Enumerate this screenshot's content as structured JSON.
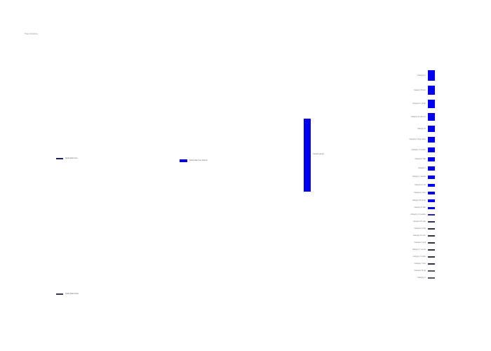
{
  "page": {
    "title": "Tree structure"
  },
  "left_nodes": [
    {
      "label": "Node label one",
      "color": "#1a1a66"
    },
    {
      "label": "Node label two branch",
      "color": "#0000ee"
    },
    {
      "label": "Node label three",
      "color": "#333355"
    }
  ],
  "center_node": {
    "label": "Central group",
    "color": "#0000ee"
  },
  "right_column": {
    "items": [
      {
        "label": "Category A",
        "weight": 15,
        "color": "#0000ee"
      },
      {
        "label": "Category B item",
        "weight": 13,
        "color": "#0000ee"
      },
      {
        "label": "Category C group",
        "weight": 12,
        "color": "#0000ee"
      },
      {
        "label": "Category D element",
        "weight": 11,
        "color": "#0000ee"
      },
      {
        "label": "Category E",
        "weight": 9,
        "color": "#0000ee"
      },
      {
        "label": "Category F long name",
        "weight": 8,
        "color": "#0000ee"
      },
      {
        "label": "Category G section",
        "weight": 7,
        "color": "#0000ee"
      },
      {
        "label": "Category H list",
        "weight": 6,
        "color": "#0000ee"
      },
      {
        "label": "Category I",
        "weight": 5.5,
        "color": "#0000ee"
      },
      {
        "label": "Category J variant",
        "weight": 5,
        "color": "#0000ee"
      },
      {
        "label": "Category K set",
        "weight": 4.5,
        "color": "#0000ee"
      },
      {
        "label": "Category L item",
        "weight": 4,
        "color": "#0000ee"
      },
      {
        "label": "Category M group",
        "weight": 3.5,
        "color": "#0000ee"
      },
      {
        "label": "Category N part",
        "weight": 3,
        "color": "#0000ee"
      },
      {
        "label": "Category O member",
        "weight": 2.5,
        "color": "#2222aa"
      },
      {
        "label": "Category P node",
        "weight": 2,
        "color": "#333366"
      },
      {
        "label": "Category Q leaf",
        "weight": 2,
        "color": "#333344"
      },
      {
        "label": "Category R entry",
        "weight": 2,
        "color": "#333344"
      },
      {
        "label": "Category S unit",
        "weight": 2,
        "color": "#333344"
      },
      {
        "label": "Category T record",
        "weight": 2,
        "color": "#333344"
      },
      {
        "label": "Category U value",
        "weight": 2,
        "color": "#333344"
      },
      {
        "label": "Category V key",
        "weight": 2,
        "color": "#333344"
      },
      {
        "label": "Category W tag",
        "weight": 2,
        "color": "#555566"
      },
      {
        "label": "Category X",
        "weight": 2,
        "color": "#555566"
      }
    ]
  }
}
